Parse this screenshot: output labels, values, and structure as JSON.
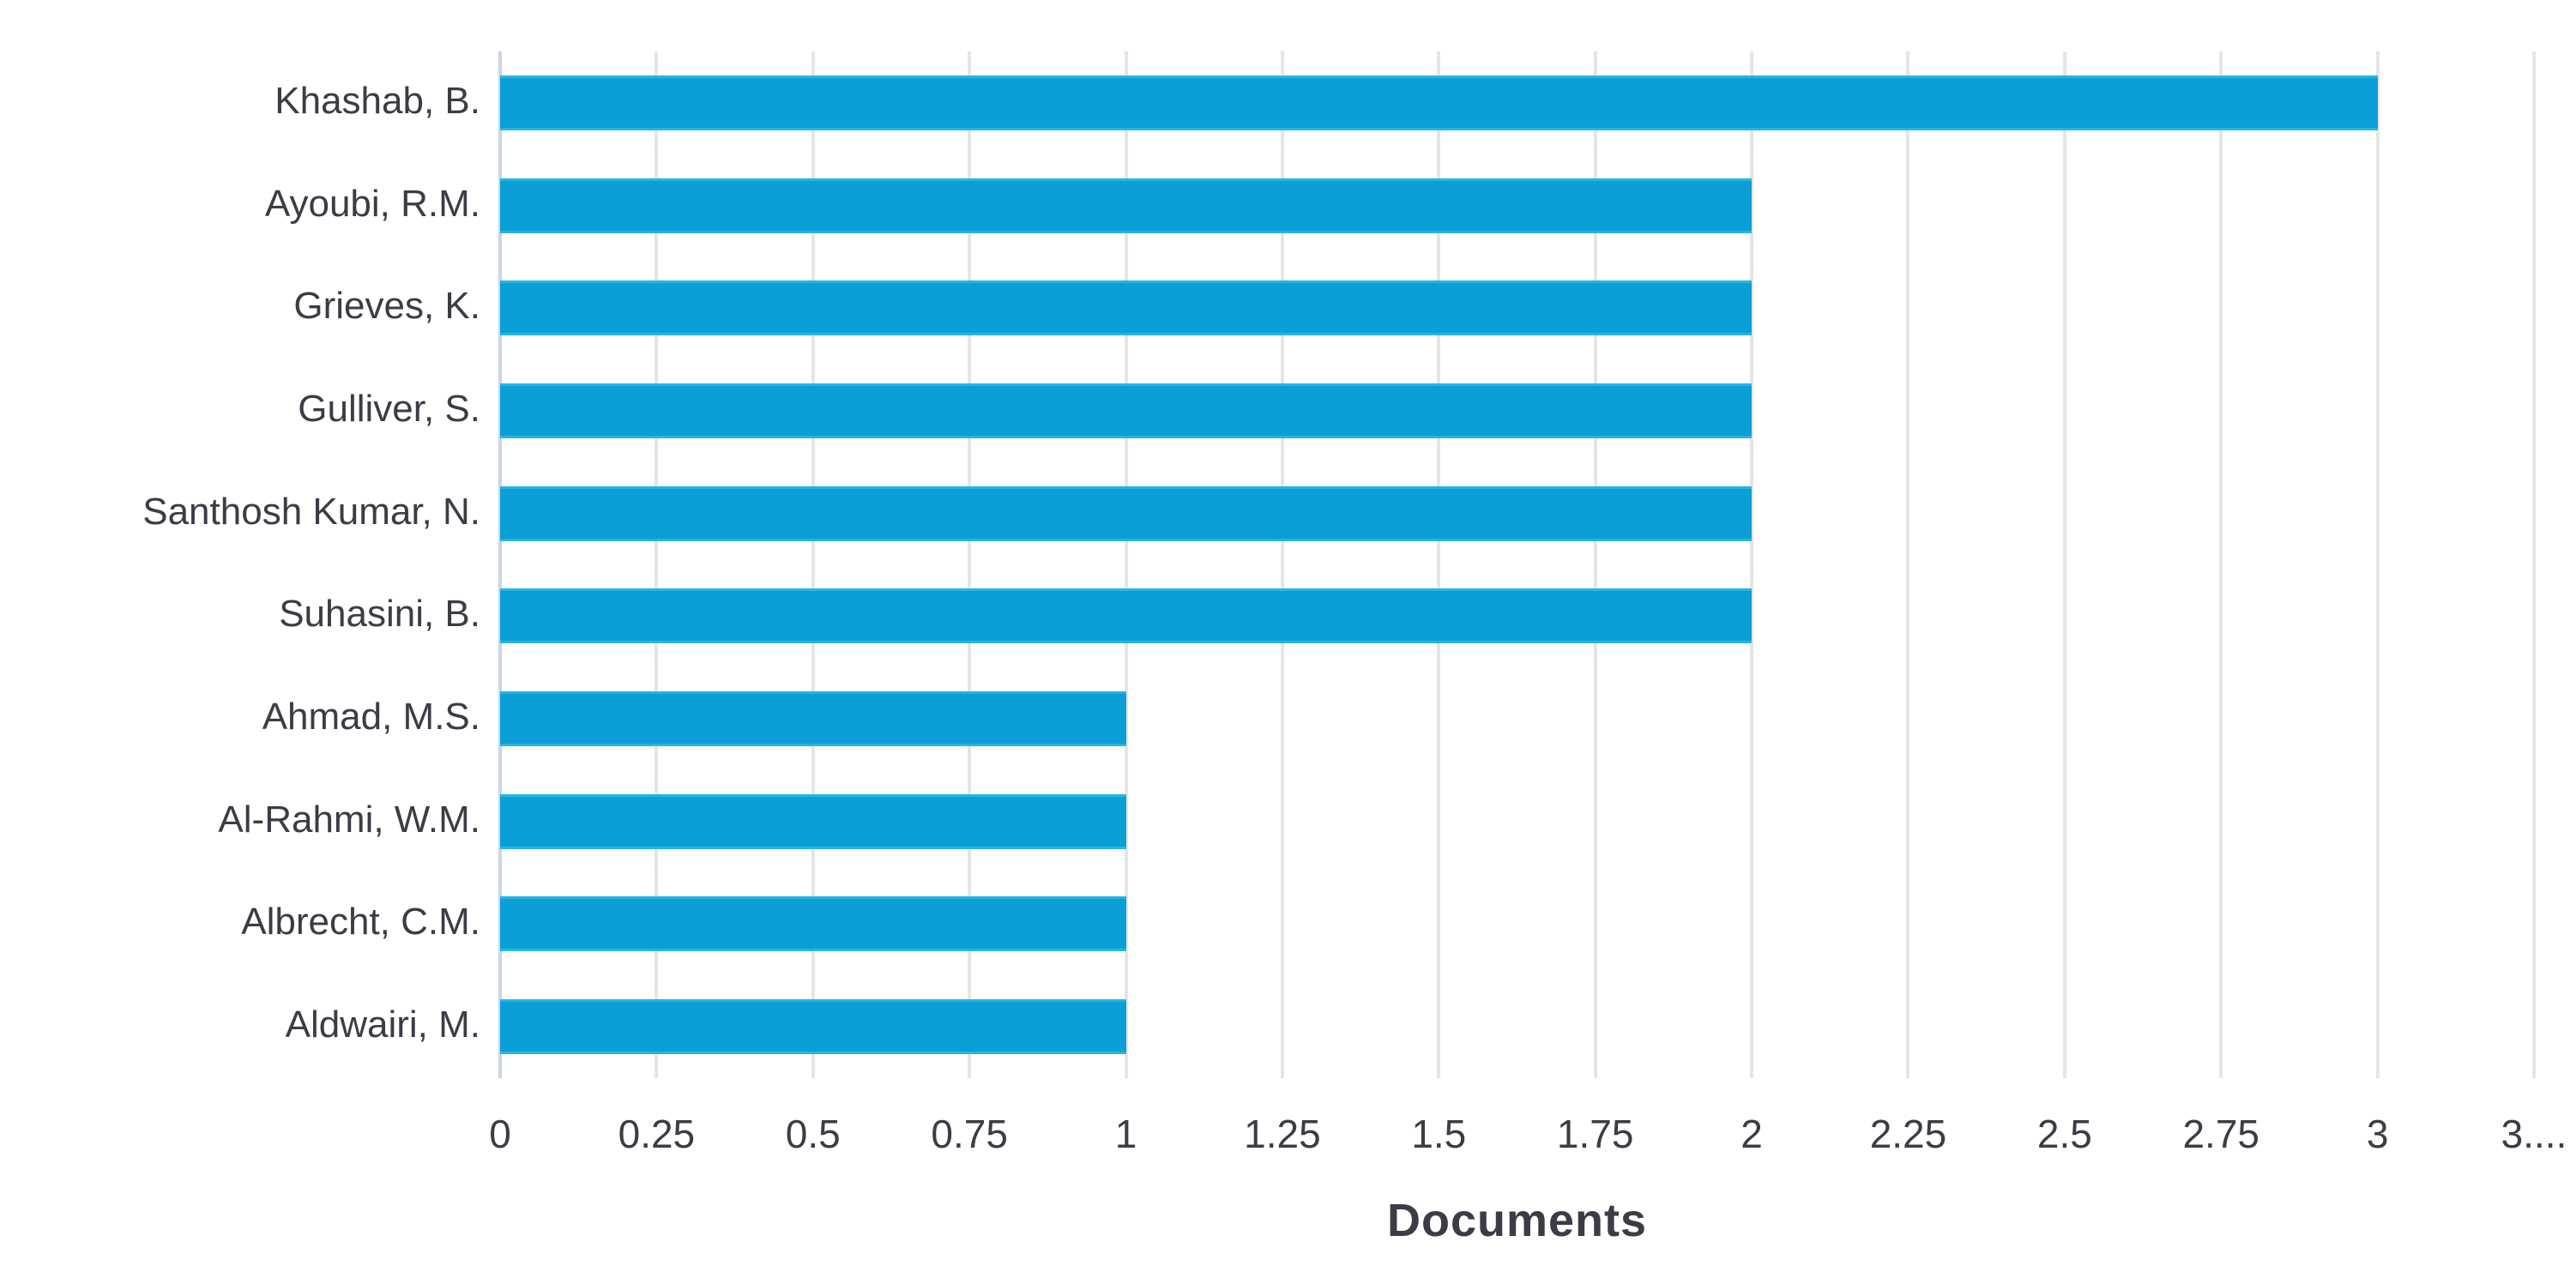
{
  "chart_data": {
    "type": "bar",
    "orientation": "horizontal",
    "title": "",
    "xlabel": "Documents",
    "ylabel": "",
    "categories": [
      "Khashab, B.",
      "Ayoubi, R.M.",
      "Grieves, K.",
      "Gulliver, S.",
      "Santhosh Kumar, N.",
      "Suhasini, B.",
      "Ahmad, M.S.",
      "Al-Rahmi, W.M.",
      "Albrecht, C.M.",
      "Aldwairi, M."
    ],
    "values": [
      3,
      2,
      2,
      2,
      2,
      2,
      1,
      1,
      1,
      1
    ],
    "xlim": [
      0,
      3.25
    ],
    "grid": "vertical",
    "legend": "none",
    "x_ticks": [
      {
        "value": 0,
        "label": "0"
      },
      {
        "value": 0.25,
        "label": "0.25"
      },
      {
        "value": 0.5,
        "label": "0.5"
      },
      {
        "value": 0.75,
        "label": "0.75"
      },
      {
        "value": 1,
        "label": "1"
      },
      {
        "value": 1.25,
        "label": "1.25"
      },
      {
        "value": 1.5,
        "label": "1.5"
      },
      {
        "value": 1.75,
        "label": "1.75"
      },
      {
        "value": 2,
        "label": "2"
      },
      {
        "value": 2.25,
        "label": "2.25"
      },
      {
        "value": 2.5,
        "label": "2.5"
      },
      {
        "value": 2.75,
        "label": "2.75"
      },
      {
        "value": 3,
        "label": "3"
      },
      {
        "value": 3.25,
        "label": "3...."
      }
    ],
    "colors": {
      "bar": "#0a9fd6",
      "gridline": "#e5e5e5",
      "axis_line": "#ccd4e8",
      "text": "#3b3c45"
    }
  }
}
